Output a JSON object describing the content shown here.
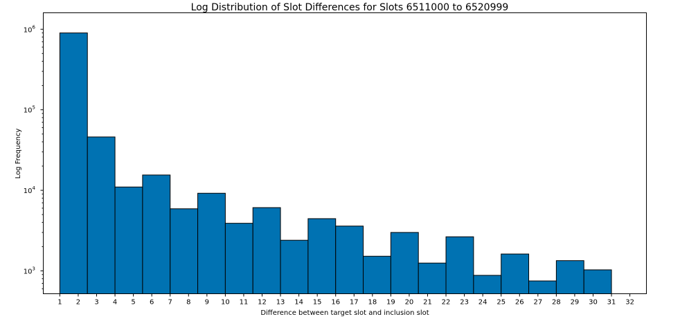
{
  "chart_data": {
    "type": "bar",
    "title": "Log Distribution of Slot Differences for Slots 6511000 to 6520999",
    "xlabel": "Difference between target slot and inclusion slot",
    "ylabel": "Log Frequency",
    "yscale": "log",
    "ylim": [
      520,
      1600000
    ],
    "xlim": [
      0.1,
      32.9
    ],
    "grid": false,
    "x_ticks": [
      "1",
      "2",
      "3",
      "4",
      "5",
      "6",
      "7",
      "8",
      "9",
      "10",
      "11",
      "12",
      "13",
      "14",
      "15",
      "16",
      "17",
      "18",
      "19",
      "20",
      "21",
      "22",
      "23",
      "24",
      "25",
      "26",
      "27",
      "28",
      "29",
      "30",
      "31",
      "32"
    ],
    "y_ticks": [
      {
        "value": 1000,
        "base": "10",
        "exp": "3"
      },
      {
        "value": 10000,
        "base": "10",
        "exp": "4"
      },
      {
        "value": 100000,
        "base": "10",
        "exp": "5"
      },
      {
        "value": 1000000,
        "base": "10",
        "exp": "6"
      }
    ],
    "bins": [
      {
        "start": 1.0,
        "end": 2.5,
        "value": 900000
      },
      {
        "start": 2.5,
        "end": 4.0,
        "value": 46000
      },
      {
        "start": 4.0,
        "end": 5.5,
        "value": 11000
      },
      {
        "start": 5.5,
        "end": 7.0,
        "value": 15500
      },
      {
        "start": 7.0,
        "end": 8.5,
        "value": 5900
      },
      {
        "start": 8.5,
        "end": 10.0,
        "value": 9200
      },
      {
        "start": 10.0,
        "end": 11.5,
        "value": 3900
      },
      {
        "start": 11.5,
        "end": 13.0,
        "value": 6100
      },
      {
        "start": 13.0,
        "end": 14.5,
        "value": 2400
      },
      {
        "start": 14.5,
        "end": 16.0,
        "value": 4450
      },
      {
        "start": 16.0,
        "end": 17.5,
        "value": 3600
      },
      {
        "start": 17.5,
        "end": 19.0,
        "value": 1520
      },
      {
        "start": 19.0,
        "end": 20.5,
        "value": 3000
      },
      {
        "start": 20.5,
        "end": 22.0,
        "value": 1250
      },
      {
        "start": 22.0,
        "end": 23.5,
        "value": 2650
      },
      {
        "start": 23.5,
        "end": 25.0,
        "value": 880
      },
      {
        "start": 25.0,
        "end": 26.5,
        "value": 1620
      },
      {
        "start": 26.5,
        "end": 28.0,
        "value": 750
      },
      {
        "start": 28.0,
        "end": 29.5,
        "value": 1340
      },
      {
        "start": 29.5,
        "end": 31.0,
        "value": 1030
      }
    ],
    "bar_color": "#0072b2",
    "edge_color": "#000000"
  }
}
